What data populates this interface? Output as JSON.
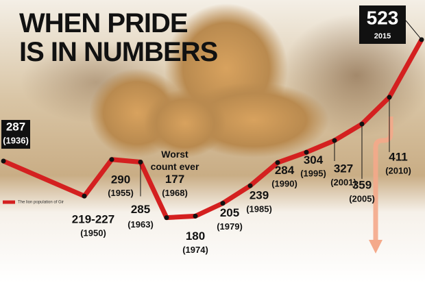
{
  "chart_data": {
    "type": "line",
    "title": "WHEN PRIDE IS IN NUMBERS",
    "annotation": "Worst count ever",
    "categories": [
      "(1936)",
      "(1950)",
      "(1955)",
      "(1963)",
      "(1968)",
      "(1974)",
      "(1979)",
      "(1985)",
      "(1990)",
      "(1995)",
      "(2001)",
      "(2005)",
      "(2010)",
      "2015"
    ],
    "series": [
      {
        "name": "The lion population of Gir",
        "color": "#d42020",
        "values": [
          287,
          219,
          290,
          285,
          177,
          180,
          205,
          239,
          284,
          304,
          327,
          359,
          411,
          523
        ],
        "value_labels": [
          "287",
          "219-227",
          "290",
          "285",
          "177",
          "180",
          "205",
          "239",
          "284",
          "304",
          "327",
          "359",
          "411",
          "523"
        ]
      }
    ],
    "ylim": [
      50,
      600
    ]
  }
}
